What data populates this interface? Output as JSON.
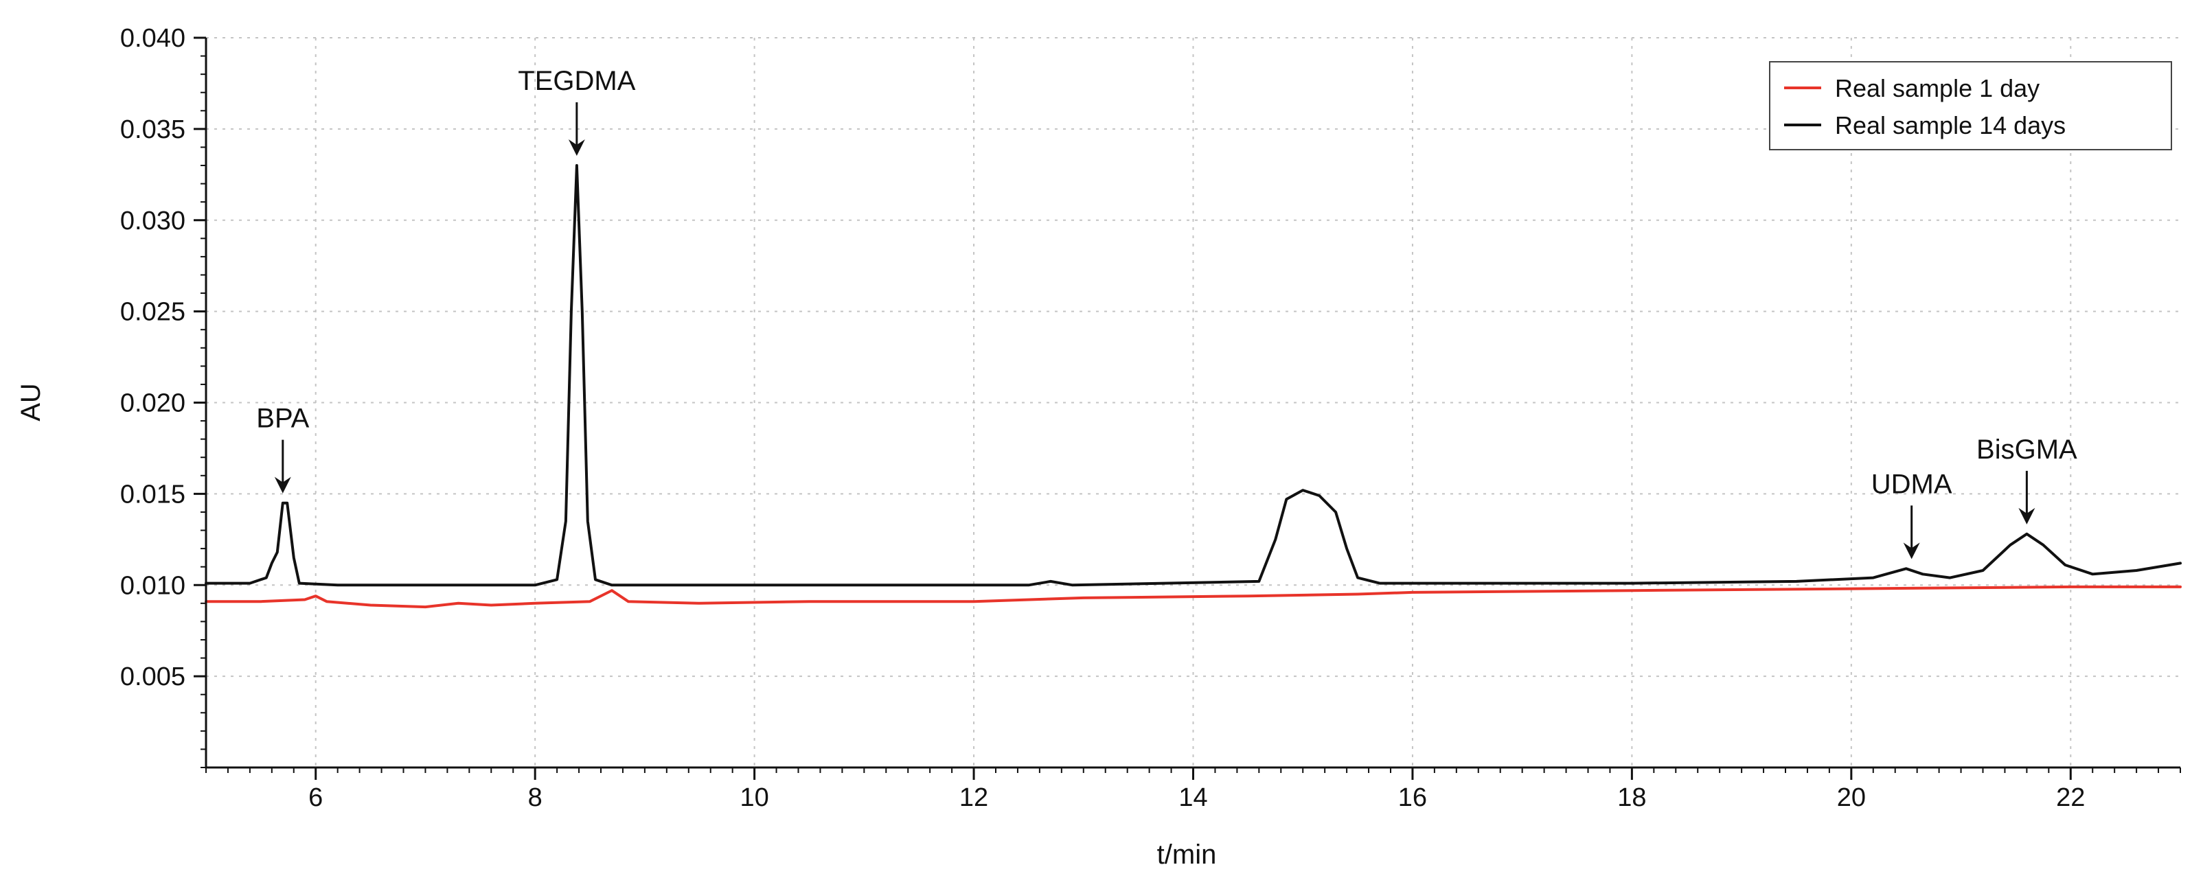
{
  "chart_data": {
    "type": "line",
    "title": "",
    "xlabel": "t/min",
    "ylabel": "AU",
    "xlim": [
      5,
      23
    ],
    "ylim": [
      0.0,
      0.04
    ],
    "x_ticks": [
      6,
      8,
      10,
      12,
      14,
      16,
      18,
      20,
      22
    ],
    "y_ticks": [
      "0.005",
      "0.010",
      "0.015",
      "0.020",
      "0.025",
      "0.030",
      "0.035",
      "0.040"
    ],
    "grid": true,
    "legend_position": "top-right",
    "series": [
      {
        "name": "Real sample 1 day",
        "color": "#e8342a",
        "points": [
          [
            5.0,
            0.0091
          ],
          [
            5.5,
            0.0091
          ],
          [
            5.9,
            0.0092
          ],
          [
            6.0,
            0.0094
          ],
          [
            6.1,
            0.0091
          ],
          [
            6.5,
            0.0089
          ],
          [
            7.0,
            0.0088
          ],
          [
            7.3,
            0.009
          ],
          [
            7.6,
            0.0089
          ],
          [
            8.0,
            0.009
          ],
          [
            8.5,
            0.0091
          ],
          [
            8.7,
            0.0097
          ],
          [
            8.85,
            0.0091
          ],
          [
            9.5,
            0.009
          ],
          [
            10.5,
            0.0091
          ],
          [
            12.0,
            0.0091
          ],
          [
            13.0,
            0.0093
          ],
          [
            14.5,
            0.0094
          ],
          [
            15.5,
            0.0095
          ],
          [
            16.0,
            0.0096
          ],
          [
            18.0,
            0.0097
          ],
          [
            20.0,
            0.0098
          ],
          [
            22.0,
            0.0099
          ],
          [
            23.0,
            0.0099
          ]
        ]
      },
      {
        "name": "Real sample 14 days",
        "color": "#111111",
        "points": [
          [
            5.0,
            0.0101
          ],
          [
            5.4,
            0.0101
          ],
          [
            5.55,
            0.0104
          ],
          [
            5.6,
            0.0112
          ],
          [
            5.65,
            0.0118
          ],
          [
            5.7,
            0.0145
          ],
          [
            5.74,
            0.0145
          ],
          [
            5.8,
            0.0115
          ],
          [
            5.85,
            0.0101
          ],
          [
            6.2,
            0.01
          ],
          [
            8.0,
            0.01
          ],
          [
            8.2,
            0.0103
          ],
          [
            8.28,
            0.0135
          ],
          [
            8.33,
            0.025
          ],
          [
            8.38,
            0.033
          ],
          [
            8.43,
            0.025
          ],
          [
            8.48,
            0.0135
          ],
          [
            8.55,
            0.0103
          ],
          [
            8.7,
            0.01
          ],
          [
            10.5,
            0.01
          ],
          [
            12.5,
            0.01
          ],
          [
            12.7,
            0.0102
          ],
          [
            12.9,
            0.01
          ],
          [
            14.6,
            0.0102
          ],
          [
            14.75,
            0.0125
          ],
          [
            14.85,
            0.0147
          ],
          [
            15.0,
            0.0152
          ],
          [
            15.15,
            0.0149
          ],
          [
            15.3,
            0.014
          ],
          [
            15.4,
            0.012
          ],
          [
            15.5,
            0.0104
          ],
          [
            15.7,
            0.0101
          ],
          [
            16.5,
            0.0101
          ],
          [
            18.0,
            0.0101
          ],
          [
            19.5,
            0.0102
          ],
          [
            20.2,
            0.0104
          ],
          [
            20.5,
            0.0109
          ],
          [
            20.65,
            0.0106
          ],
          [
            20.9,
            0.0104
          ],
          [
            21.2,
            0.0108
          ],
          [
            21.45,
            0.0122
          ],
          [
            21.6,
            0.0128
          ],
          [
            21.75,
            0.0122
          ],
          [
            21.95,
            0.0111
          ],
          [
            22.2,
            0.0106
          ],
          [
            22.6,
            0.0108
          ],
          [
            23.0,
            0.0112
          ]
        ]
      }
    ],
    "annotations": [
      {
        "label": "BPA",
        "x": 5.7,
        "y": 0.0145
      },
      {
        "label": "TEGDMA",
        "x": 8.38,
        "y": 0.033
      },
      {
        "label": "UDMA",
        "x": 20.55,
        "y": 0.0109
      },
      {
        "label": "BisGMA",
        "x": 21.6,
        "y": 0.0128
      }
    ]
  }
}
